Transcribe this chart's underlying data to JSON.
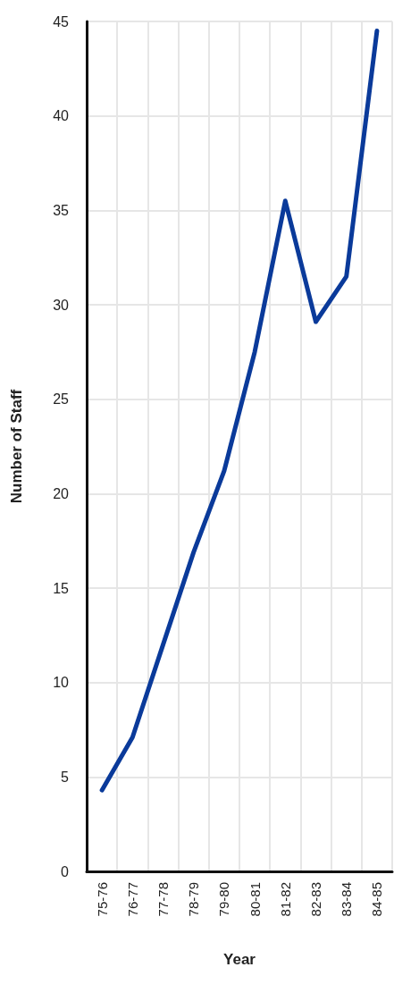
{
  "chart_data": {
    "type": "line",
    "xlabel": "Year",
    "ylabel": "Number of Staff",
    "categories": [
      "75-76",
      "76-77",
      "77-78",
      "78-79",
      "79-80",
      "80-81",
      "81-82",
      "82-83",
      "83-84",
      "84-85"
    ],
    "series": [
      {
        "color": "#0a3a9a",
        "values": [
          4.3,
          7.1,
          12,
          16.9,
          21.2,
          27.5,
          35.5,
          29.1,
          31.5,
          44.5
        ]
      }
    ],
    "ylim": [
      0,
      45
    ],
    "yticks": [
      0,
      5,
      10,
      15,
      20,
      25,
      30,
      35,
      40,
      45
    ],
    "grid": true,
    "marker": "none",
    "line_style": "solid"
  }
}
